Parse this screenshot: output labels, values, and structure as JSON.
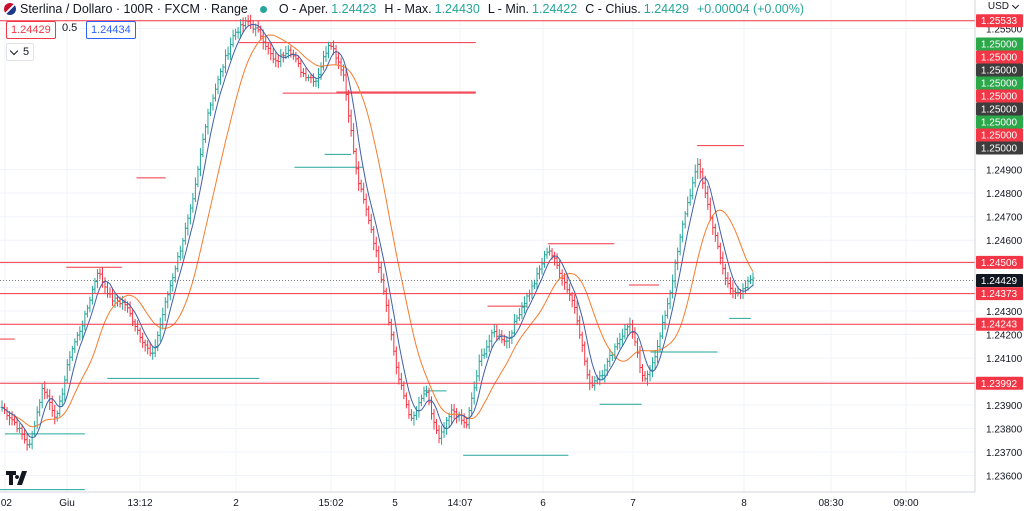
{
  "header": {
    "symbol": "Sterlina / Dollaro · 100R · FXCM · Range",
    "open_label": "O - Aper.",
    "open": "1.24423",
    "high_label": "H - Max.",
    "high": "1.24430",
    "low_label": "L - Min.",
    "low": "1.24422",
    "close_label": "C - Chius.",
    "close": "1.24429",
    "change": "+0.00004 (+0.00%)"
  },
  "trade": {
    "sell": "1.24429",
    "spread": "0.5",
    "buy": "1.24434"
  },
  "indicators_count": "5",
  "currency": "USD",
  "colors": {
    "up": "#26a69a",
    "down": "#f23645",
    "fast_ma": "#3f5fa8",
    "slow_ma": "#f57c2c",
    "level": "#f23645"
  },
  "chart_data": {
    "type": "bar",
    "x_ticks": [
      ":02",
      "Giu",
      "13:12",
      "2",
      "15:02",
      "5",
      "14:07",
      "6",
      "7",
      "8",
      "08:30",
      "09:00"
    ],
    "y_ticks": [
      "1.25500",
      "1.24900",
      "1.24800",
      "1.24700",
      "1.24600",
      "1.24500",
      "1.24400",
      "1.24300",
      "1.24200",
      "1.24100",
      "1.24000",
      "1.23900",
      "1.23800",
      "1.23700",
      "1.23600"
    ],
    "ylim": [
      1.2353,
      1.2557
    ],
    "levels": [
      {
        "value": "1.25533",
        "y": 1.25533
      },
      {
        "value": "1.24506",
        "y": 1.24506
      },
      {
        "value": "1.24373",
        "y": 1.24373
      },
      {
        "value": "1.24243",
        "y": 1.24243
      },
      {
        "value": "1.23992",
        "y": 1.23992
      }
    ],
    "axis_tags": [
      {
        "value": "1.25000",
        "color": "#2ba84a"
      },
      {
        "value": "1.25000",
        "color": "#f23645"
      },
      {
        "value": "1.25000",
        "color": "#3d3d3d"
      },
      {
        "value": "1.25000",
        "color": "#2ba84a"
      },
      {
        "value": "1.25000",
        "color": "#f23645"
      },
      {
        "value": "1.25000",
        "color": "#3d3d3d"
      },
      {
        "value": "1.25000",
        "color": "#2ba84a"
      },
      {
        "value": "1.25000",
        "color": "#f23645"
      },
      {
        "value": "1.25000",
        "color": "#3d3d3d"
      }
    ],
    "last_price": "1.24429",
    "tag_1_24425": "1.24425",
    "path": [
      1.2389,
      1.2382,
      1.2372,
      1.2398,
      1.2384,
      1.2412,
      1.2426,
      1.2447,
      1.2435,
      1.2433,
      1.2421,
      1.241,
      1.2434,
      1.2455,
      1.2477,
      1.2513,
      1.2531,
      1.2548,
      1.2553,
      1.2547,
      1.2535,
      1.2542,
      1.2531,
      1.2528,
      1.2545,
      1.2531,
      1.2487,
      1.2466,
      1.2438,
      1.2402,
      1.2383,
      1.2396,
      1.2375,
      1.2388,
      1.2381,
      1.2409,
      1.2421,
      1.2417,
      1.2431,
      1.2442,
      1.2457,
      1.2445,
      1.2431,
      1.2398,
      1.2404,
      1.2416,
      1.2425,
      1.2399,
      1.2414,
      1.244,
      1.2471,
      1.2493,
      1.2467,
      1.2443,
      1.2436,
      1.2445
    ],
    "range_lines": [
      {
        "x0": 0.0,
        "x1": 0.015,
        "y": 1.2418,
        "color": "#f23645"
      },
      {
        "x0": 0.005,
        "x1": 0.087,
        "y": 1.23777,
        "color": "#26a69a"
      },
      {
        "x0": 0.0,
        "x1": 0.087,
        "y": 1.2354,
        "color": "#26a69a"
      },
      {
        "x0": 0.068,
        "x1": 0.125,
        "y": 1.24485,
        "color": "#f23645"
      },
      {
        "x0": 0.11,
        "x1": 0.266,
        "y": 1.24013,
        "color": "#26a69a"
      },
      {
        "x0": 0.14,
        "x1": 0.17,
        "y": 1.24865,
        "color": "#f23645"
      },
      {
        "x0": 0.245,
        "x1": 0.488,
        "y": 1.2544,
        "color": "#f23645"
      },
      {
        "x0": 0.29,
        "x1": 0.488,
        "y": 1.25225,
        "color": "#f23645"
      },
      {
        "x0": 0.302,
        "x1": 0.372,
        "y": 1.2491,
        "color": "#26a69a"
      },
      {
        "x0": 0.333,
        "x1": 0.36,
        "y": 1.24965,
        "color": "#26a69a"
      },
      {
        "x0": 0.345,
        "x1": 0.488,
        "y": 1.2523,
        "color": "#f23645"
      },
      {
        "x0": 0.435,
        "x1": 0.458,
        "y": 1.2396,
        "color": "#26a69a"
      },
      {
        "x0": 0.475,
        "x1": 0.583,
        "y": 1.23686,
        "color": "#26a69a"
      },
      {
        "x0": 0.5,
        "x1": 0.54,
        "y": 1.2432,
        "color": "#f23645"
      },
      {
        "x0": 0.562,
        "x1": 0.63,
        "y": 1.24585,
        "color": "#f23645"
      },
      {
        "x0": 0.615,
        "x1": 0.658,
        "y": 1.23903,
        "color": "#26a69a"
      },
      {
        "x0": 0.645,
        "x1": 0.676,
        "y": 1.2441,
        "color": "#f23645"
      },
      {
        "x0": 0.667,
        "x1": 0.736,
        "y": 1.24125,
        "color": "#26a69a"
      },
      {
        "x0": 0.715,
        "x1": 0.763,
        "y": 1.25002,
        "color": "#f23645"
      },
      {
        "x0": 0.748,
        "x1": 0.77,
        "y": 1.24268,
        "color": "#26a69a"
      }
    ]
  }
}
